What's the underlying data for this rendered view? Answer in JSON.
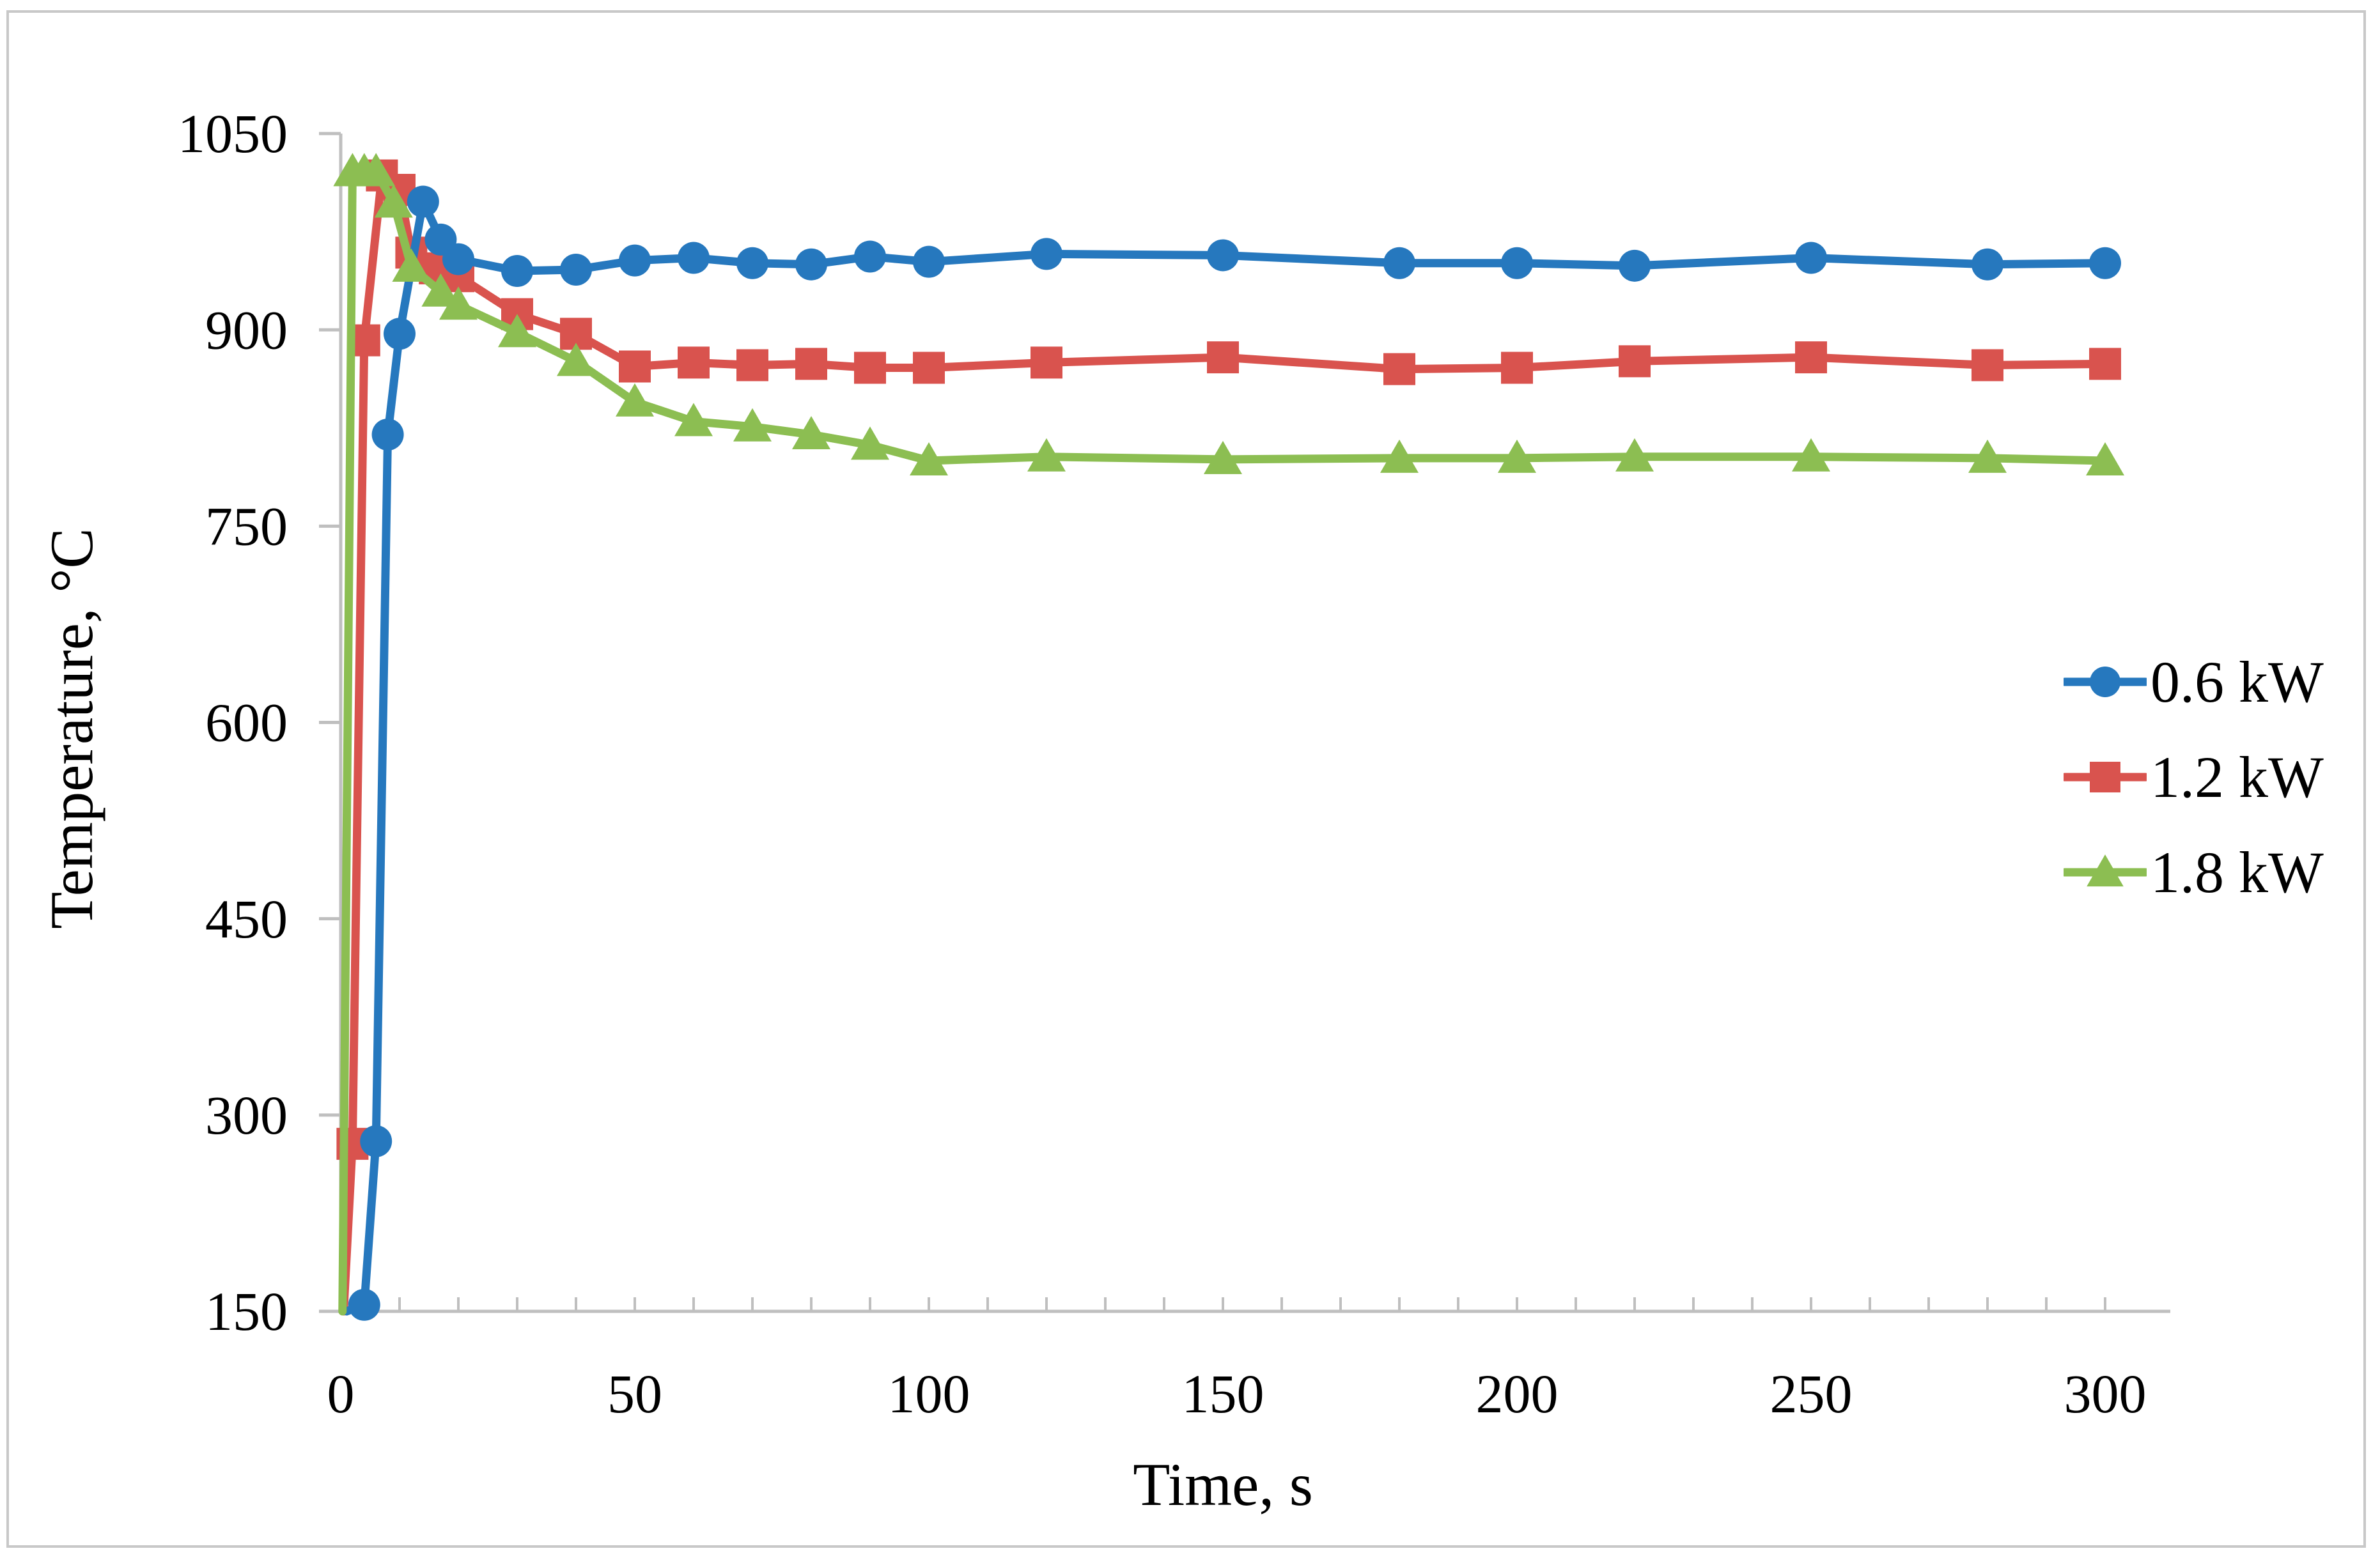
{
  "chart_data": {
    "type": "line",
    "title": "",
    "xlabel": "Time, s",
    "ylabel": "Temperature, °C",
    "xlim": [
      0,
      300
    ],
    "ylim": [
      150,
      1050
    ],
    "x_ticks": [
      0,
      50,
      100,
      150,
      200,
      250,
      300
    ],
    "y_ticks": [
      150,
      300,
      450,
      600,
      750,
      900,
      1050
    ],
    "x_minor_tick_step": 10,
    "grid": false,
    "legend_position": "right-middle",
    "axis_color": "#BFBFBF",
    "border_color": "#C8C8C8",
    "text_color": "#000000",
    "series": [
      {
        "name": "1.2 kW",
        "color": "#D9534E",
        "marker": "square",
        "lead_in_point": [
          0.5,
          150
        ],
        "points": [
          [
            2,
            278
          ],
          [
            4,
            892
          ],
          [
            7,
            1018
          ],
          [
            10,
            1007
          ],
          [
            12,
            959
          ],
          [
            16,
            947
          ],
          [
            20,
            941
          ],
          [
            30,
            912
          ],
          [
            40,
            897
          ],
          [
            50,
            872
          ],
          [
            60,
            875
          ],
          [
            70,
            873
          ],
          [
            80,
            874
          ],
          [
            90,
            871
          ],
          [
            100,
            871
          ],
          [
            120,
            875
          ],
          [
            150,
            879
          ],
          [
            180,
            870
          ],
          [
            200,
            871
          ],
          [
            220,
            876
          ],
          [
            250,
            879
          ],
          [
            280,
            873
          ],
          [
            300,
            874
          ]
        ]
      },
      {
        "name": "0.6 kW",
        "color": "#2678BE",
        "marker": "circle",
        "lead_in_point": [
          1,
          150
        ],
        "points": [
          [
            4,
            155
          ],
          [
            6,
            280
          ],
          [
            8,
            820
          ],
          [
            10,
            897
          ],
          [
            14,
            998
          ],
          [
            17,
            969
          ],
          [
            20,
            954
          ],
          [
            30,
            945
          ],
          [
            40,
            946
          ],
          [
            50,
            953
          ],
          [
            60,
            955
          ],
          [
            70,
            951
          ],
          [
            80,
            950
          ],
          [
            90,
            956
          ],
          [
            100,
            952
          ],
          [
            120,
            958
          ],
          [
            150,
            957
          ],
          [
            180,
            951
          ],
          [
            200,
            951
          ],
          [
            220,
            949
          ],
          [
            250,
            955
          ],
          [
            280,
            950
          ],
          [
            300,
            951
          ]
        ]
      },
      {
        "name": "1.8 kW",
        "color": "#8CBE52",
        "marker": "triangle",
        "lead_in_point": [
          0.3,
          150
        ],
        "points": [
          [
            2,
            1021
          ],
          [
            4,
            1021
          ],
          [
            6,
            1021
          ],
          [
            9,
            997
          ],
          [
            12,
            948
          ],
          [
            17,
            929
          ],
          [
            20,
            919
          ],
          [
            30,
            898
          ],
          [
            40,
            876
          ],
          [
            50,
            845
          ],
          [
            60,
            830
          ],
          [
            70,
            826
          ],
          [
            80,
            820
          ],
          [
            90,
            812
          ],
          [
            100,
            800
          ],
          [
            120,
            803
          ],
          [
            150,
            801
          ],
          [
            180,
            802
          ],
          [
            200,
            802
          ],
          [
            220,
            803
          ],
          [
            250,
            803
          ],
          [
            280,
            802
          ],
          [
            300,
            800
          ]
        ]
      }
    ],
    "legend_order": [
      "0.6 kW",
      "1.2 kW",
      "1.8 kW"
    ]
  }
}
